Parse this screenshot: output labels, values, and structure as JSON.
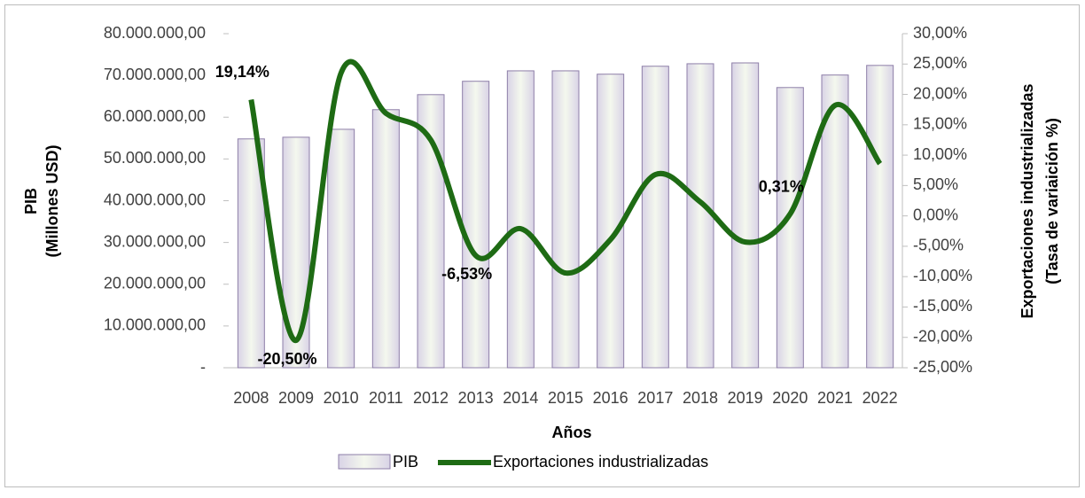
{
  "chart_data": {
    "type": "bar_line",
    "categories": [
      "2008",
      "2009",
      "2010",
      "2011",
      "2012",
      "2013",
      "2014",
      "2015",
      "2016",
      "2017",
      "2018",
      "2019",
      "2020",
      "2021",
      "2022"
    ],
    "series": [
      {
        "name": "PIB",
        "type": "bar",
        "color": "#e4ecd8",
        "values": [
          54800000,
          55200000,
          57100000,
          61800000,
          65400000,
          68600000,
          71100000,
          71100000,
          70300000,
          72200000,
          72800000,
          73000000,
          67100000,
          70100000,
          72400000
        ]
      },
      {
        "name": "Exportaciones industrializadas",
        "type": "line",
        "axis": "y2",
        "color": "#1e6b14",
        "values": [
          19.14,
          -20.5,
          23.5,
          16.9,
          12.5,
          -6.53,
          -2.1,
          -9.4,
          -3.9,
          6.8,
          2.3,
          -4.3,
          0.31,
          18.2,
          8.6
        ],
        "value_labels": [
          "19,14%",
          "-20,50%",
          null,
          null,
          null,
          "-6,53%",
          null,
          null,
          null,
          null,
          null,
          null,
          "0,31%",
          null,
          null
        ]
      }
    ],
    "ylabel": [
      "PIB",
      "(Millones USD)"
    ],
    "y2label": [
      "Exportaciones industrializadas",
      "(Tasa de variaición %)"
    ],
    "xlabel": "Años",
    "ylim": [
      0,
      80000000
    ],
    "yticks": [
      {
        "value": 0,
        "label": "-"
      },
      {
        "value": 10000000,
        "label": "10.000.000,00"
      },
      {
        "value": 20000000,
        "label": "20.000.000,00"
      },
      {
        "value": 30000000,
        "label": "30.000.000,00"
      },
      {
        "value": 40000000,
        "label": "40.000.000,00"
      },
      {
        "value": 50000000,
        "label": "50.000.000,00"
      },
      {
        "value": 60000000,
        "label": "60.000.000,00"
      },
      {
        "value": 70000000,
        "label": "70.000.000,00"
      },
      {
        "value": 80000000,
        "label": "80.000.000,00"
      }
    ],
    "y2lim": [
      -25,
      30
    ],
    "y2ticks": [
      {
        "value": -25,
        "label": "-25,00%"
      },
      {
        "value": -20,
        "label": "-20,00%"
      },
      {
        "value": -15,
        "label": "-15,00%"
      },
      {
        "value": -10,
        "label": "-10,00%"
      },
      {
        "value": -5,
        "label": "-5,00%"
      },
      {
        "value": 0,
        "label": "0,00%"
      },
      {
        "value": 5,
        "label": "5,00%"
      },
      {
        "value": 10,
        "label": "10,00%"
      },
      {
        "value": 15,
        "label": "15,00%"
      },
      {
        "value": 20,
        "label": "20,00%"
      },
      {
        "value": 25,
        "label": "25,00%"
      },
      {
        "value": 30,
        "label": "30,00%"
      }
    ],
    "legend": "bottom"
  }
}
